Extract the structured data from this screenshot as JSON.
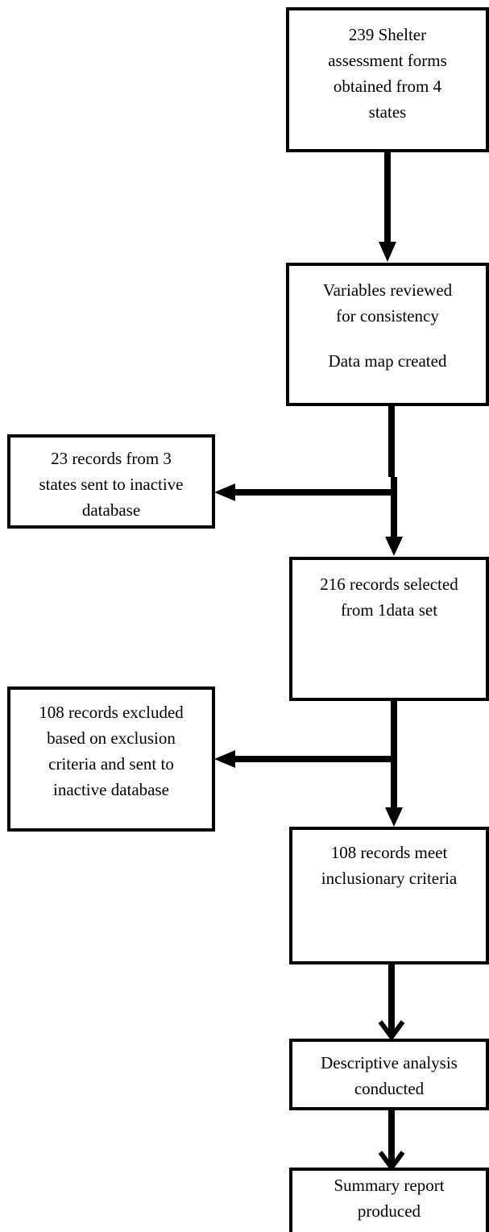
{
  "flowchart": {
    "nodes": {
      "forms": {
        "lines": [
          "239 Shelter",
          "assessment forms",
          "obtained from 4",
          "states"
        ]
      },
      "variables": {
        "lines": [
          "Variables reviewed",
          "for consistency"
        ],
        "extra": "Data map created"
      },
      "inactive1": {
        "lines": [
          "23 records from 3",
          "states sent to inactive",
          "database"
        ]
      },
      "selected": {
        "lines": [
          "216 records selected",
          "from 1data set"
        ]
      },
      "excluded": {
        "lines": [
          "108 records excluded",
          "based on exclusion",
          "criteria and sent to",
          "inactive database"
        ]
      },
      "meet": {
        "lines": [
          "108 records meet",
          "inclusionary criteria"
        ]
      },
      "analysis": {
        "lines": [
          "Descriptive analysis",
          "conducted"
        ]
      },
      "summary": {
        "lines": [
          "Summary report",
          "produced"
        ]
      }
    },
    "edges": [
      {
        "from": "forms",
        "to": "variables"
      },
      {
        "from": "variables",
        "to": "selected"
      },
      {
        "from": "variables",
        "to": "inactive1"
      },
      {
        "from": "selected",
        "to": "meet"
      },
      {
        "from": "selected",
        "to": "excluded"
      },
      {
        "from": "meet",
        "to": "analysis"
      },
      {
        "from": "analysis",
        "to": "summary"
      }
    ],
    "colors": {
      "stroke": "#000000",
      "background": "#ffffff"
    }
  }
}
